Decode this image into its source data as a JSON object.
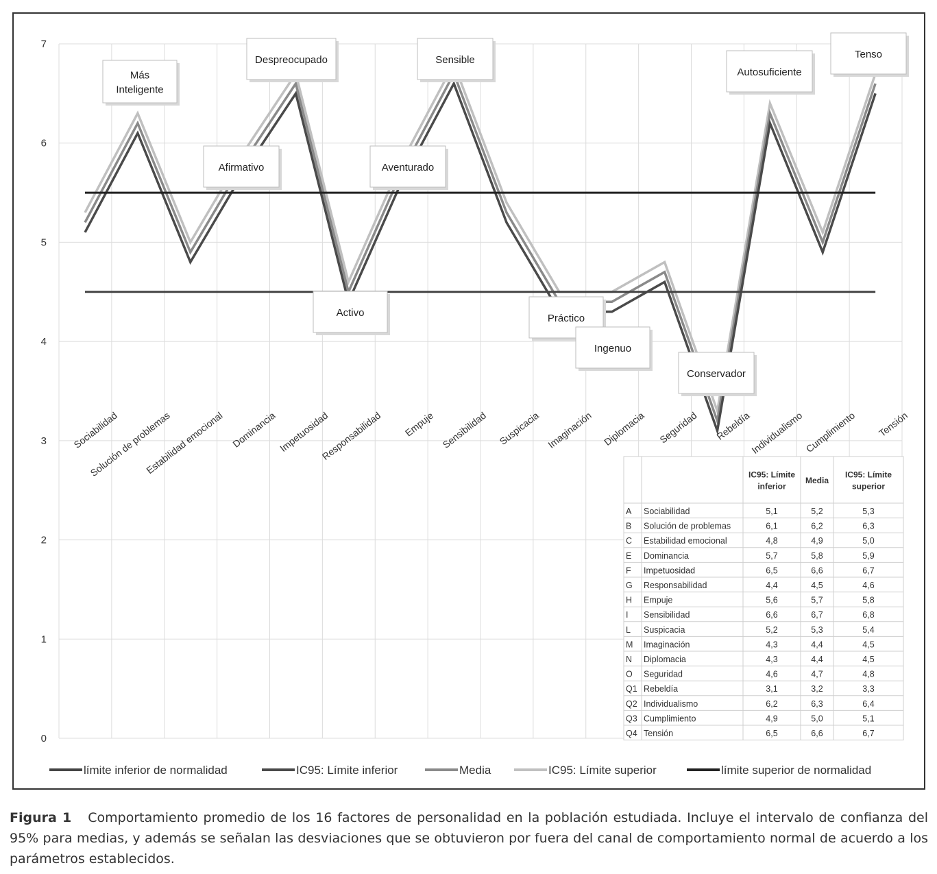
{
  "chart_data": {
    "type": "line",
    "categories": [
      "Sociabilidad",
      "Solución de problemas",
      "Estabilidad emocional",
      "Dominancia",
      "Impetuosidad",
      "Responsabilidad",
      "Empuje",
      "Sensibilidad",
      "Suspicacia",
      "Imaginación",
      "Diplomacia",
      "Seguridad",
      "Rebeldía",
      "Individualismo",
      "Cumplimiento",
      "Tensión"
    ],
    "series": [
      {
        "name": "límite inferior de normalidad",
        "values": [
          4.5,
          4.5,
          4.5,
          4.5,
          4.5,
          4.5,
          4.5,
          4.5,
          4.5,
          4.5,
          4.5,
          4.5,
          4.5,
          4.5,
          4.5,
          4.5
        ],
        "color": "#444444"
      },
      {
        "name": "IC95: Límite inferior",
        "values": [
          5.1,
          6.1,
          4.8,
          5.7,
          6.5,
          4.4,
          5.6,
          6.6,
          5.2,
          4.3,
          4.3,
          4.6,
          3.1,
          6.2,
          4.9,
          6.5
        ],
        "color": "#4a4a4a"
      },
      {
        "name": "Media",
        "values": [
          5.2,
          6.2,
          4.9,
          5.8,
          6.6,
          4.5,
          5.7,
          6.7,
          5.3,
          4.4,
          4.4,
          4.7,
          3.2,
          6.3,
          5.0,
          6.6
        ],
        "color": "#8a8a8a"
      },
      {
        "name": "IC95: Límite superior",
        "values": [
          5.3,
          6.3,
          5.0,
          5.9,
          6.7,
          4.6,
          5.8,
          6.8,
          5.4,
          4.5,
          4.5,
          4.8,
          3.3,
          6.4,
          5.1,
          6.7
        ],
        "color": "#c0c0c0"
      },
      {
        "name": "límite superior de normalidad",
        "values": [
          5.5,
          5.5,
          5.5,
          5.5,
          5.5,
          5.5,
          5.5,
          5.5,
          5.5,
          5.5,
          5.5,
          5.5,
          5.5,
          5.5,
          5.5,
          5.5
        ],
        "color": "#222222"
      }
    ],
    "ylim": [
      0,
      7
    ],
    "yticks": [
      "0",
      "1",
      "2",
      "3",
      "4",
      "5",
      "6",
      "7"
    ],
    "grid": true,
    "legend_position": "bottom",
    "annotations": [
      {
        "text": "Más\nInteligente",
        "category": "Solución de problemas"
      },
      {
        "text": "Afirmativo",
        "category": "Dominancia"
      },
      {
        "text": "Despreocupado",
        "category": "Impetuosidad"
      },
      {
        "text": "Activo",
        "category": "Responsabilidad"
      },
      {
        "text": "Aventurado",
        "category": "Empuje"
      },
      {
        "text": "Sensible",
        "category": "Sensibilidad"
      },
      {
        "text": "Práctico",
        "category": "Imaginación"
      },
      {
        "text": "Ingenuo",
        "category": "Diplomacia"
      },
      {
        "text": "Conservador",
        "category": "Rebeldía"
      },
      {
        "text": "Autosuficiente",
        "category": "Individualismo"
      },
      {
        "text": "Tenso",
        "category": "Tensión"
      }
    ],
    "table": {
      "headers": [
        "",
        "",
        "IC95: Límite\ninferior",
        "Media",
        "IC95: Límite\nsuperior"
      ],
      "rows": [
        [
          "A",
          "Sociabilidad",
          "5,1",
          "5,2",
          "5,3"
        ],
        [
          "B",
          "Solución de problemas",
          "6,1",
          "6,2",
          "6,3"
        ],
        [
          "C",
          "Estabilidad emocional",
          "4,8",
          "4,9",
          "5,0"
        ],
        [
          "E",
          "Dominancia",
          "5,7",
          "5,8",
          "5,9"
        ],
        [
          "F",
          "Impetuosidad",
          "6,5",
          "6,6",
          "6,7"
        ],
        [
          "G",
          "Responsabilidad",
          "4,4",
          "4,5",
          "4,6"
        ],
        [
          "H",
          "Empuje",
          "5,6",
          "5,7",
          "5,8"
        ],
        [
          "I",
          "Sensibilidad",
          "6,6",
          "6,7",
          "6,8"
        ],
        [
          "L",
          "Suspicacia",
          "5,2",
          "5,3",
          "5,4"
        ],
        [
          "M",
          "Imaginación",
          "4,3",
          "4,4",
          "4,5"
        ],
        [
          "N",
          "Diplomacia",
          "4,3",
          "4,4",
          "4,5"
        ],
        [
          "O",
          "Seguridad",
          "4,6",
          "4,7",
          "4,8"
        ],
        [
          "Q1",
          "Rebeldía",
          "3,1",
          "3,2",
          "3,3"
        ],
        [
          "Q2",
          "Individualismo",
          "6,2",
          "6,3",
          "6,4"
        ],
        [
          "Q3",
          "Cumplimiento",
          "4,9",
          "5,0",
          "5,1"
        ],
        [
          "Q4",
          "Tensión",
          "6,5",
          "6,6",
          "6,7"
        ]
      ]
    }
  },
  "caption": {
    "figure_label": "Figura 1",
    "text": "Comportamiento promedio de los 16 factores de personalidad en la población estudiada. Incluye el intervalo de confianza del 95% para medias, y además se señalan las desviaciones que se obtuvieron por fuera del canal de comportamiento normal de acuerdo a los parámetros establecidos."
  }
}
